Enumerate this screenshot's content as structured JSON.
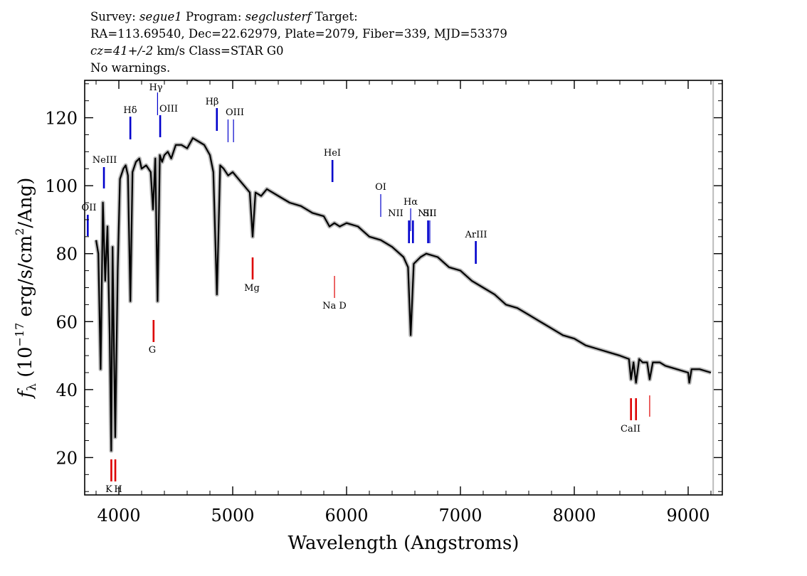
{
  "header": {
    "line1": {
      "survey_label": "Survey: ",
      "survey": "segue1",
      "program_label": " Program: ",
      "program": "segclusterf",
      "target_label": " Target:"
    },
    "line2": "RA=113.69540, Dec=22.62979, Plate=2079, Fiber=339, MJD=53379",
    "line3": {
      "cz": "cz=41+/-2",
      "rest": " km/s Class=STAR G0"
    },
    "line4": "No warnings."
  },
  "chart_data": {
    "type": "line",
    "title": "",
    "xlabel": "Wavelength (Angstroms)",
    "ylabel": "f_λ (10^-17 erg/s/cm^2/Ang)",
    "ylabel_parts": {
      "f": "f",
      "lambda": "λ",
      "open": " (10",
      "exp": "−17",
      "mid": " erg/s/cm",
      "exp2": "2",
      "close": "/Ang)"
    },
    "xlim": [
      3700,
      9300
    ],
    "ylim": [
      9,
      131
    ],
    "xticks": [
      4000,
      5000,
      6000,
      7000,
      8000,
      9000
    ],
    "yticks": [
      20,
      40,
      60,
      80,
      100,
      120
    ],
    "colors": {
      "spectrum": "#000000",
      "error_band": "#bbbbbb",
      "emission": "#0000cc",
      "absorption": "#dd0000"
    },
    "spectrum": {
      "x": [
        3800,
        3820,
        3840,
        3860,
        3880,
        3900,
        3920,
        3933,
        3945,
        3968,
        3990,
        4010,
        4040,
        4060,
        4080,
        4101,
        4120,
        4150,
        4180,
        4200,
        4240,
        4280,
        4300,
        4320,
        4340,
        4360,
        4380,
        4400,
        4430,
        4460,
        4500,
        4550,
        4600,
        4650,
        4700,
        4750,
        4800,
        4830,
        4861,
        4890,
        4920,
        4960,
        5000,
        5050,
        5100,
        5150,
        5175,
        5200,
        5250,
        5300,
        5400,
        5500,
        5600,
        5700,
        5800,
        5850,
        5893,
        5940,
        6000,
        6100,
        6200,
        6300,
        6400,
        6500,
        6540,
        6563,
        6590,
        6650,
        6700,
        6800,
        6900,
        7000,
        7100,
        7200,
        7300,
        7400,
        7500,
        7600,
        7700,
        7800,
        7900,
        8000,
        8100,
        8200,
        8300,
        8400,
        8480,
        8498,
        8520,
        8542,
        8570,
        8600,
        8640,
        8662,
        8690,
        8750,
        8800,
        8900,
        9000,
        9010,
        9030,
        9100,
        9200
      ],
      "y": [
        84,
        80,
        46,
        95,
        72,
        88,
        55,
        22,
        82,
        26,
        75,
        102,
        105,
        106,
        103,
        66,
        104,
        107,
        108,
        105,
        106,
        104,
        93,
        108,
        66,
        109,
        107,
        109,
        110,
        108,
        112,
        112,
        111,
        114,
        113,
        112,
        109,
        104,
        68,
        106,
        105,
        103,
        104,
        102,
        100,
        98,
        85,
        98,
        97,
        99,
        97,
        95,
        94,
        92,
        91,
        88,
        89,
        88,
        89,
        88,
        85,
        84,
        82,
        79,
        76,
        56,
        77,
        79,
        80,
        79,
        76,
        75,
        72,
        70,
        68,
        65,
        64,
        62,
        60,
        58,
        56,
        55,
        53,
        52,
        51,
        50,
        49,
        43,
        48,
        42,
        49,
        48,
        48,
        43,
        48,
        48,
        47,
        46,
        45,
        42,
        46,
        46,
        45
      ]
    },
    "lines": [
      {
        "label": "OII",
        "wave": 3727,
        "kind": "emission"
      },
      {
        "label": "NeIII",
        "wave": 3869,
        "kind": "emission"
      },
      {
        "label": "Hδ",
        "wave": 4101,
        "kind": "emission"
      },
      {
        "label": "Hγ",
        "wave": 4340,
        "kind": "emission-thin"
      },
      {
        "label": "OIII",
        "wave": 4363,
        "kind": "emission"
      },
      {
        "label": "Hβ",
        "wave": 4861,
        "kind": "emission"
      },
      {
        "label": "OIII",
        "wave": 4959,
        "kind": "emission-thin"
      },
      {
        "label": "",
        "wave": 5007,
        "kind": "emission-thin"
      },
      {
        "label": "HeI",
        "wave": 5876,
        "kind": "emission"
      },
      {
        "label": "OI",
        "wave": 6300,
        "kind": "emission-thin"
      },
      {
        "label": "NII",
        "wave": 6548,
        "kind": "emission"
      },
      {
        "label": "Hα",
        "wave": 6563,
        "kind": "emission-thin"
      },
      {
        "label": "",
        "wave": 6583,
        "kind": "emission"
      },
      {
        "label": "NII",
        "wave": 6716,
        "kind": "emission"
      },
      {
        "label": "SII",
        "wave": 6731,
        "kind": "emission-thin"
      },
      {
        "label": "ArIII",
        "wave": 7135,
        "kind": "emission"
      },
      {
        "label": "K",
        "wave": 3934,
        "kind": "absorption"
      },
      {
        "label": "H",
        "wave": 3969,
        "kind": "absorption"
      },
      {
        "label": "G",
        "wave": 4305,
        "kind": "absorption"
      },
      {
        "label": "Mg",
        "wave": 5175,
        "kind": "absorption"
      },
      {
        "label": "Na D",
        "wave": 5894,
        "kind": "absorption-thin"
      },
      {
        "label": "",
        "wave": 8498,
        "kind": "absorption"
      },
      {
        "label": "CaII",
        "wave": 8542,
        "kind": "absorption"
      },
      {
        "label": "",
        "wave": 8662,
        "kind": "absorption-thin"
      }
    ]
  }
}
